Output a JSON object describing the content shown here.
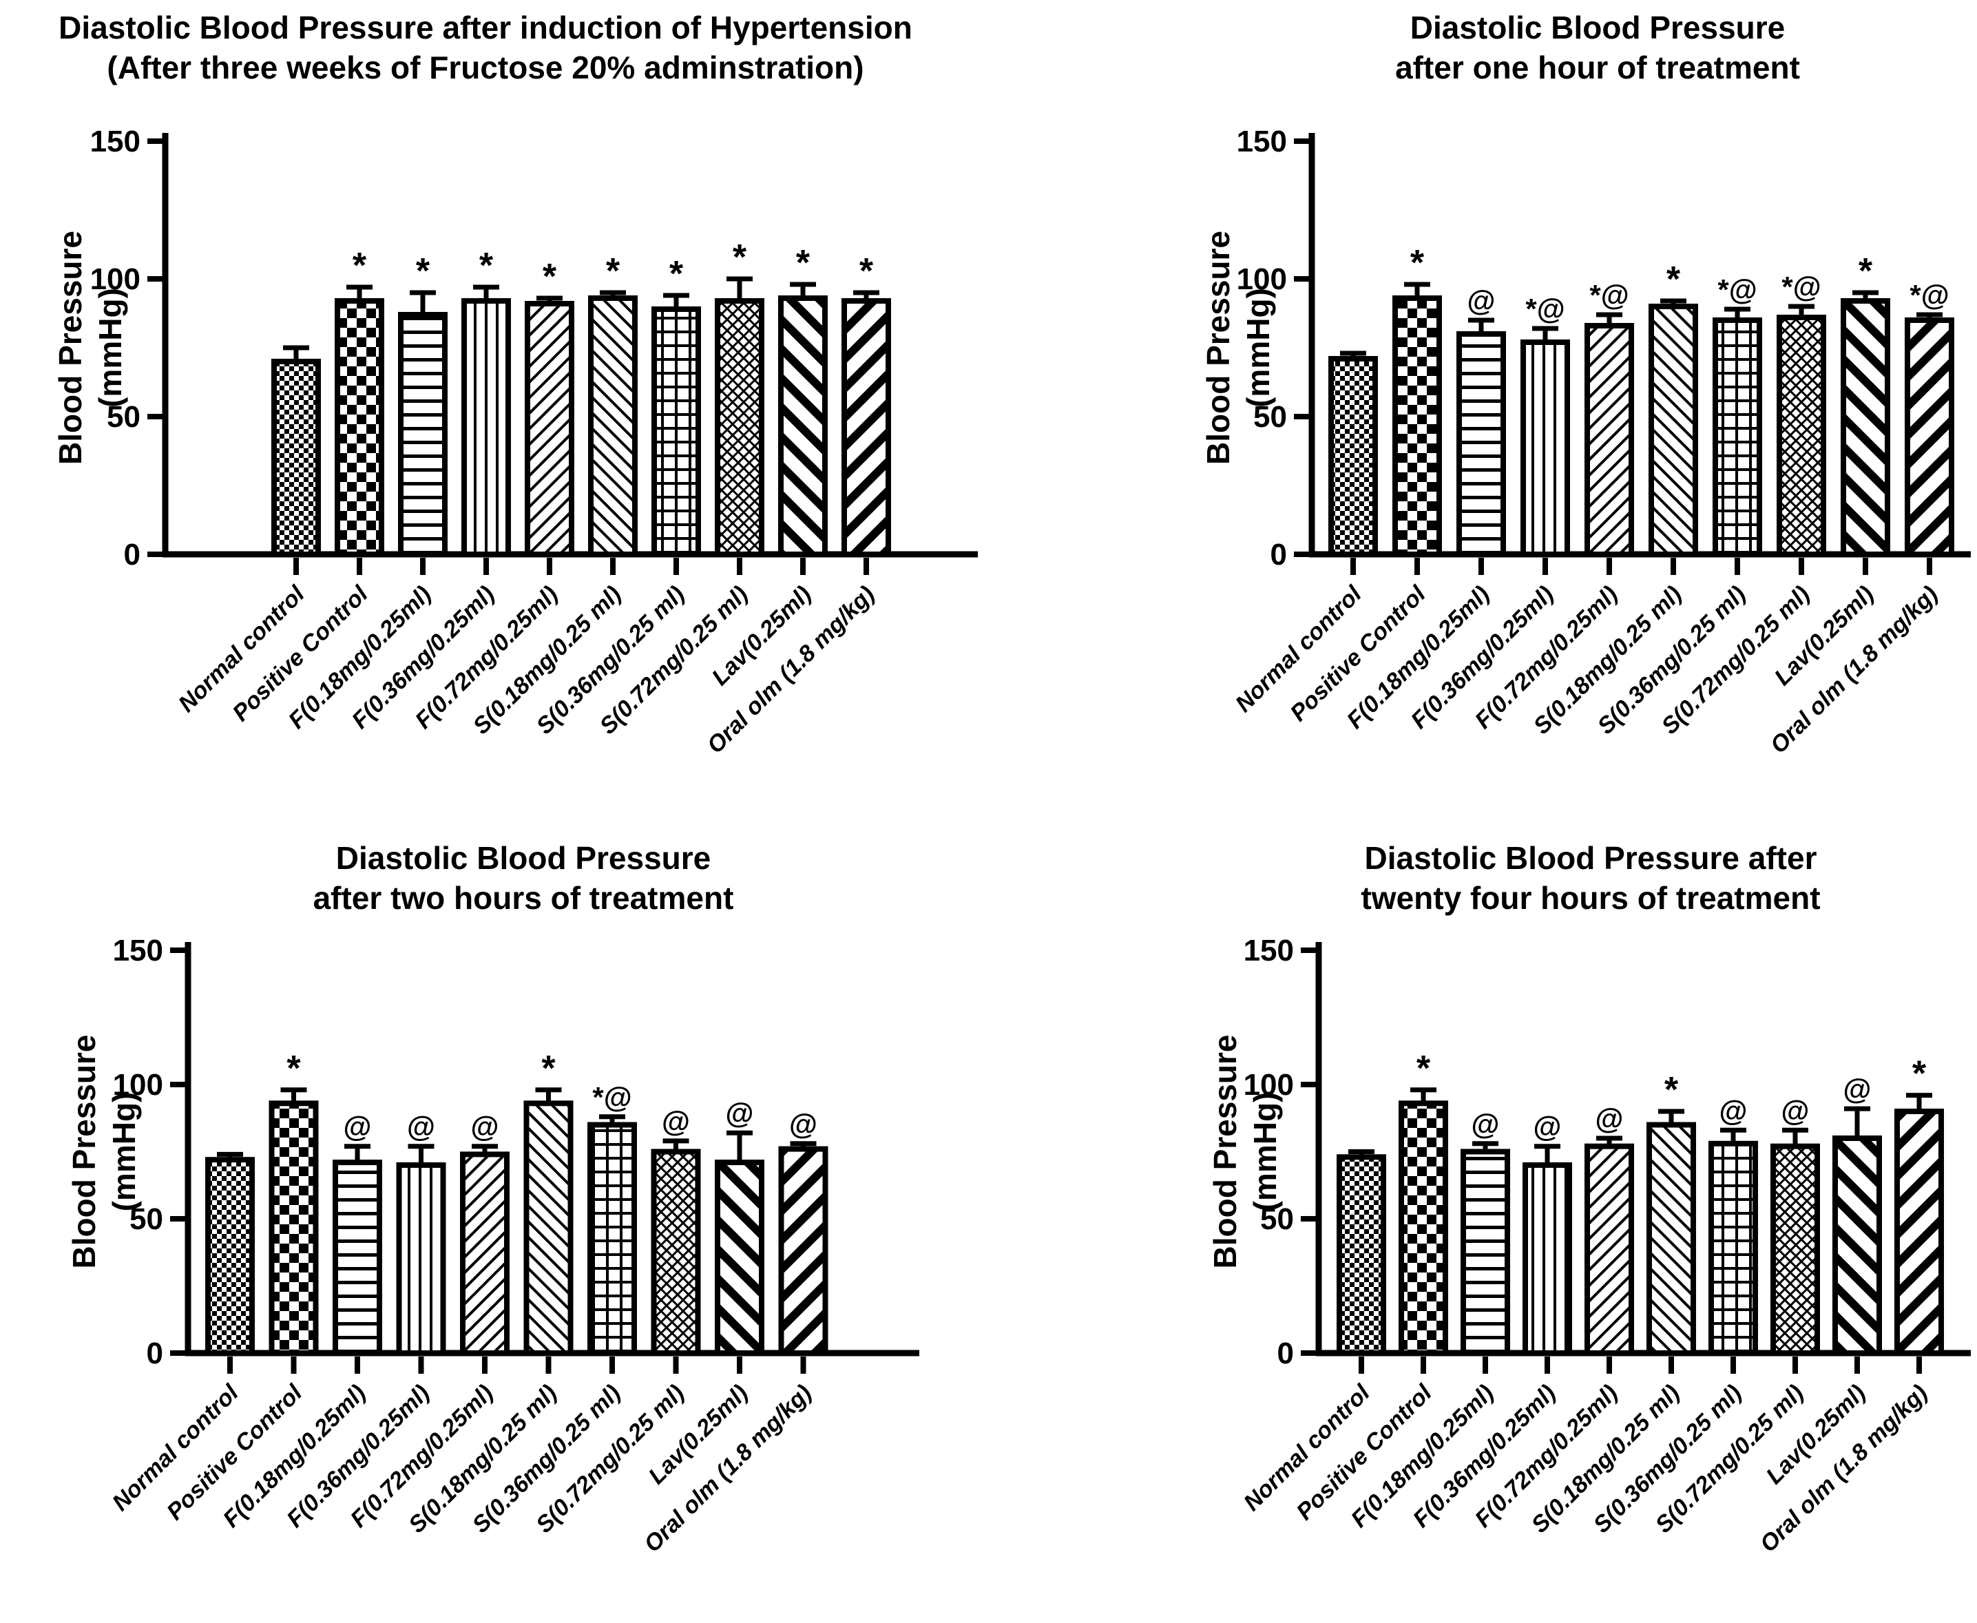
{
  "figure": {
    "background": "#ffffff",
    "ink": "#000000",
    "description": "Four-panel bar figure of diastolic blood pressure"
  },
  "chart_data": {
    "type": "bar",
    "categories": [
      "Normal control",
      "Positive Control",
      "F(0.18mg/0.25ml)",
      "F(0.36mg/0.25ml)",
      "F(0.72mg/0.25ml)",
      "S(0.18mg/0.25 ml)",
      "S(0.36mg/0.25 ml)",
      "S(0.72mg/0.25 ml)",
      "Lav(0.25ml)",
      "Oral olm (1.8 mg/kg)"
    ],
    "bar_patterns": [
      "checker-fine",
      "checker-coarse",
      "hlines",
      "vlines",
      "diag-up",
      "diag-down",
      "grid",
      "crosshatch",
      "thick-diag-down",
      "thick-diag-up"
    ],
    "ylabel_lines": [
      "Blood Pressure",
      "(mmHg)"
    ],
    "yticks": [
      0,
      50,
      100,
      150
    ],
    "ylim": [
      0,
      150
    ],
    "grid": false,
    "error_bars": "upper",
    "legend_position": "none",
    "panels": [
      {
        "id": "after-induction",
        "title_lines": [
          "Diastolic Blood Pressure after induction of Hypertension",
          "(After three weeks of Fructose 20% adminstration)"
        ],
        "values": [
          70,
          92,
          87,
          92,
          91,
          93,
          89,
          92,
          93,
          92
        ],
        "errors": [
          5,
          5,
          8,
          5,
          2,
          2,
          5,
          8,
          5,
          3
        ],
        "annotations": [
          "",
          "*",
          "*",
          "*",
          "*",
          "*",
          "*",
          "*",
          "*",
          "*"
        ]
      },
      {
        "id": "one-hour",
        "title_lines": [
          "Diastolic Blood Pressure",
          "after one hour of treatment"
        ],
        "values": [
          71,
          93,
          80,
          77,
          83,
          90,
          85,
          86,
          92,
          85
        ],
        "errors": [
          2,
          5,
          5,
          5,
          4,
          2,
          4,
          4,
          3,
          2
        ],
        "annotations": [
          "",
          "*",
          "@",
          "*@",
          "*@",
          "*",
          "*@",
          "*@",
          "*",
          "*@"
        ]
      },
      {
        "id": "two-hours",
        "title_lines": [
          "Diastolic Blood Pressure",
          "after two hours of treatment"
        ],
        "values": [
          72,
          93,
          71,
          70,
          74,
          93,
          85,
          75,
          71,
          76
        ],
        "errors": [
          2,
          5,
          6,
          7,
          3,
          5,
          3,
          4,
          11,
          2
        ],
        "annotations": [
          "",
          "*",
          "@",
          "@",
          "@",
          "*",
          "*@",
          "@",
          "@",
          "@"
        ]
      },
      {
        "id": "twenty-four-hours",
        "title_lines": [
          "Diastolic Blood Pressure after",
          "twenty four hours of treatment"
        ],
        "values": [
          73,
          93,
          75,
          70,
          77,
          85,
          78,
          77,
          80,
          90
        ],
        "errors": [
          2,
          5,
          3,
          7,
          3,
          5,
          5,
          6,
          11,
          6
        ],
        "annotations": [
          "",
          "*",
          "@",
          "@",
          "@",
          "*",
          "@",
          "@",
          "@",
          "*"
        ]
      }
    ]
  }
}
